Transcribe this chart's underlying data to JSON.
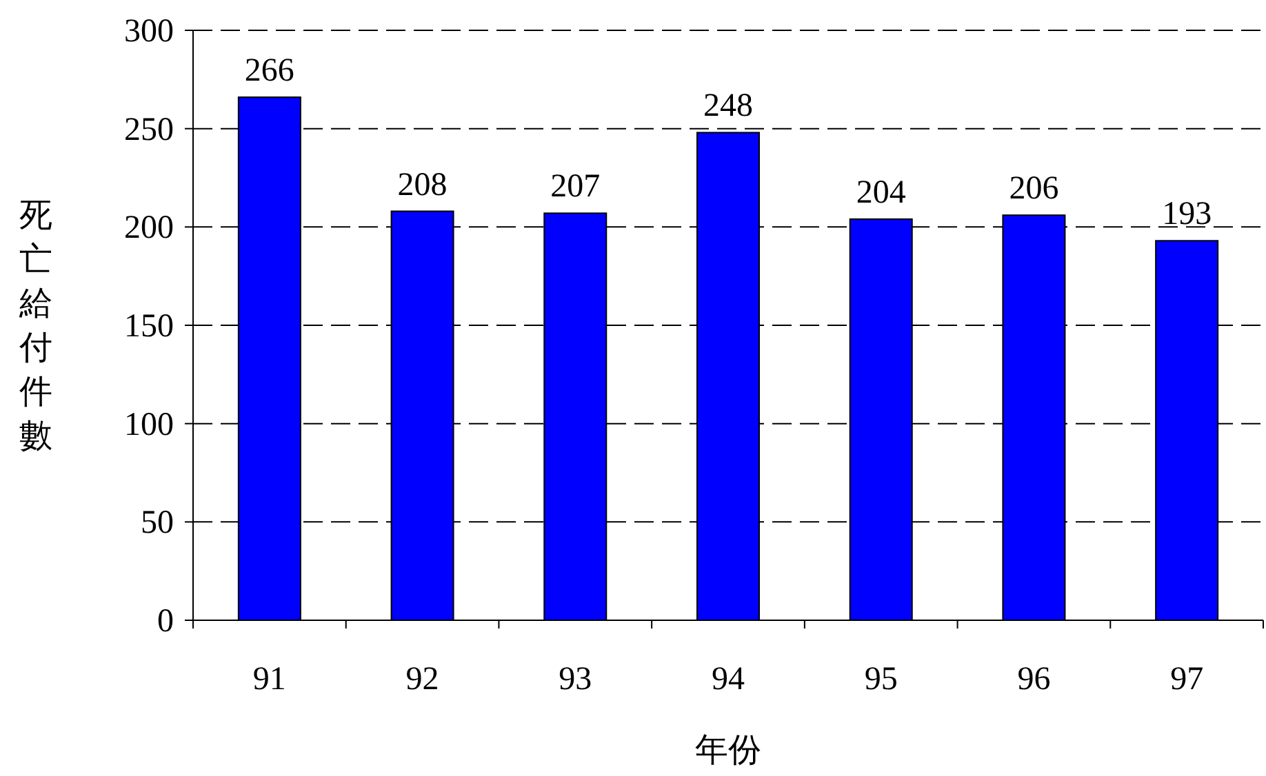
{
  "chart_data": {
    "type": "bar",
    "xlabel": "年份",
    "ylabel": "死亡給付件數",
    "categories": [
      "91",
      "92",
      "93",
      "94",
      "95",
      "96",
      "97"
    ],
    "values": [
      266,
      208,
      207,
      248,
      204,
      206,
      193
    ],
    "color": "#0000ff",
    "ylim": [
      0,
      300
    ],
    "yticks": [
      0,
      50,
      100,
      150,
      200,
      250,
      300
    ],
    "grid": "y",
    "line_style": "dashed",
    "data_labels": true
  }
}
